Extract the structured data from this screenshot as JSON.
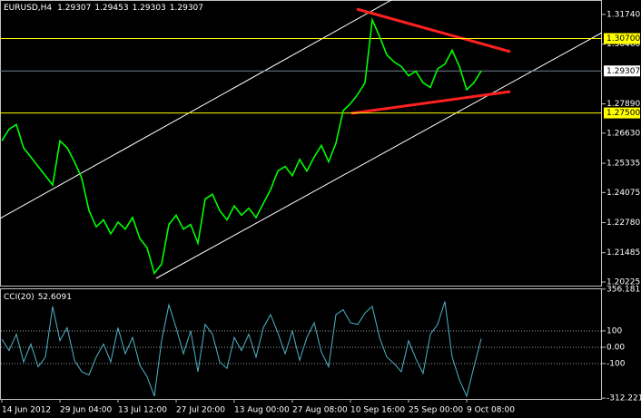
{
  "chart_data": [
    {
      "type": "line",
      "symbol": "EURUSD,H4",
      "ohlc": [
        1.29307,
        1.29453,
        1.29303,
        1.29307
      ],
      "color": "#00ff00",
      "values": [
        1.263,
        1.268,
        1.27,
        1.26,
        1.256,
        1.252,
        1.248,
        1.244,
        1.263,
        1.26,
        1.254,
        1.247,
        1.233,
        1.226,
        1.229,
        1.223,
        1.228,
        1.225,
        1.23,
        1.221,
        1.217,
        1.206,
        1.21,
        1.227,
        1.231,
        1.225,
        1.227,
        1.219,
        1.238,
        1.24,
        1.233,
        1.229,
        1.235,
        1.231,
        1.234,
        1.23,
        1.236,
        1.242,
        1.25,
        1.252,
        1.248,
        1.255,
        1.25,
        1.256,
        1.261,
        1.254,
        1.262,
        1.276,
        1.279,
        1.283,
        1.288,
        1.315,
        1.308,
        1.3,
        1.297,
        1.295,
        1.291,
        1.293,
        1.288,
        1.286,
        1.294,
        1.296,
        1.302,
        1.295,
        1.285,
        1.288,
        1.2931
      ],
      "ylim": [
        1.2007,
        1.3236
      ],
      "yticks": [
        {
          "value": 1.3174,
          "label": "1.31740"
        },
        {
          "value": 1.3046,
          "label": "1.30460"
        },
        {
          "value": 1.2789,
          "label": "1.27890"
        },
        {
          "value": 1.2663,
          "label": "1.26630"
        },
        1.25335,
        1.24075,
        {
          "value": 1.2278,
          "label": "1.22780"
        },
        1.21485,
        1.20225
      ],
      "horizontal_lines": [
        {
          "value": 1.307,
          "label": "1.30700",
          "color": "#ffff00"
        },
        {
          "value": 1.275,
          "label": "1.27500",
          "color": "#ffff00"
        }
      ],
      "price_line": 1.29307
    },
    {
      "type": "line",
      "indicator": "CCI(20)",
      "last": 52.6091,
      "color": "#4fb3c8",
      "categories": [
        "14 Jun 2012",
        null,
        null,
        null,
        null,
        null,
        null,
        null,
        "29 Jun 04:00",
        null,
        null,
        null,
        null,
        null,
        null,
        null,
        "13 Jul 12:00",
        null,
        null,
        null,
        null,
        null,
        null,
        null,
        "27 Jul 20:00",
        null,
        null,
        null,
        null,
        null,
        null,
        null,
        "13 Aug 00:00",
        null,
        null,
        null,
        null,
        null,
        null,
        null,
        "27 Aug 08:00",
        null,
        null,
        null,
        null,
        null,
        null,
        null,
        "10 Sep 16:00",
        null,
        null,
        null,
        null,
        null,
        null,
        null,
        "25 Sep 00:00",
        null,
        null,
        null,
        null,
        null,
        null,
        null,
        "9 Oct 08:00",
        null,
        null
      ],
      "values": [
        50,
        -20,
        80,
        -90,
        20,
        -120,
        -60,
        250,
        40,
        120,
        -80,
        -150,
        -170,
        -60,
        20,
        -90,
        120,
        -40,
        60,
        -110,
        -180,
        -300,
        40,
        260,
        120,
        -40,
        100,
        -150,
        140,
        80,
        -90,
        -130,
        60,
        -20,
        80,
        -60,
        120,
        200,
        90,
        -40,
        100,
        -80,
        60,
        150,
        -30,
        -120,
        200,
        230,
        150,
        140,
        210,
        250,
        60,
        -60,
        -100,
        -150,
        40,
        -70,
        -160,
        80,
        140,
        280,
        -60,
        -200,
        -300,
        -120,
        52.6091
      ],
      "ylim": [
        -317,
        361
      ],
      "yticks": [
        356.181,
        100,
        {
          "value": 0,
          "label": "0.00"
        },
        -100,
        -312.221
      ]
    }
  ]
}
